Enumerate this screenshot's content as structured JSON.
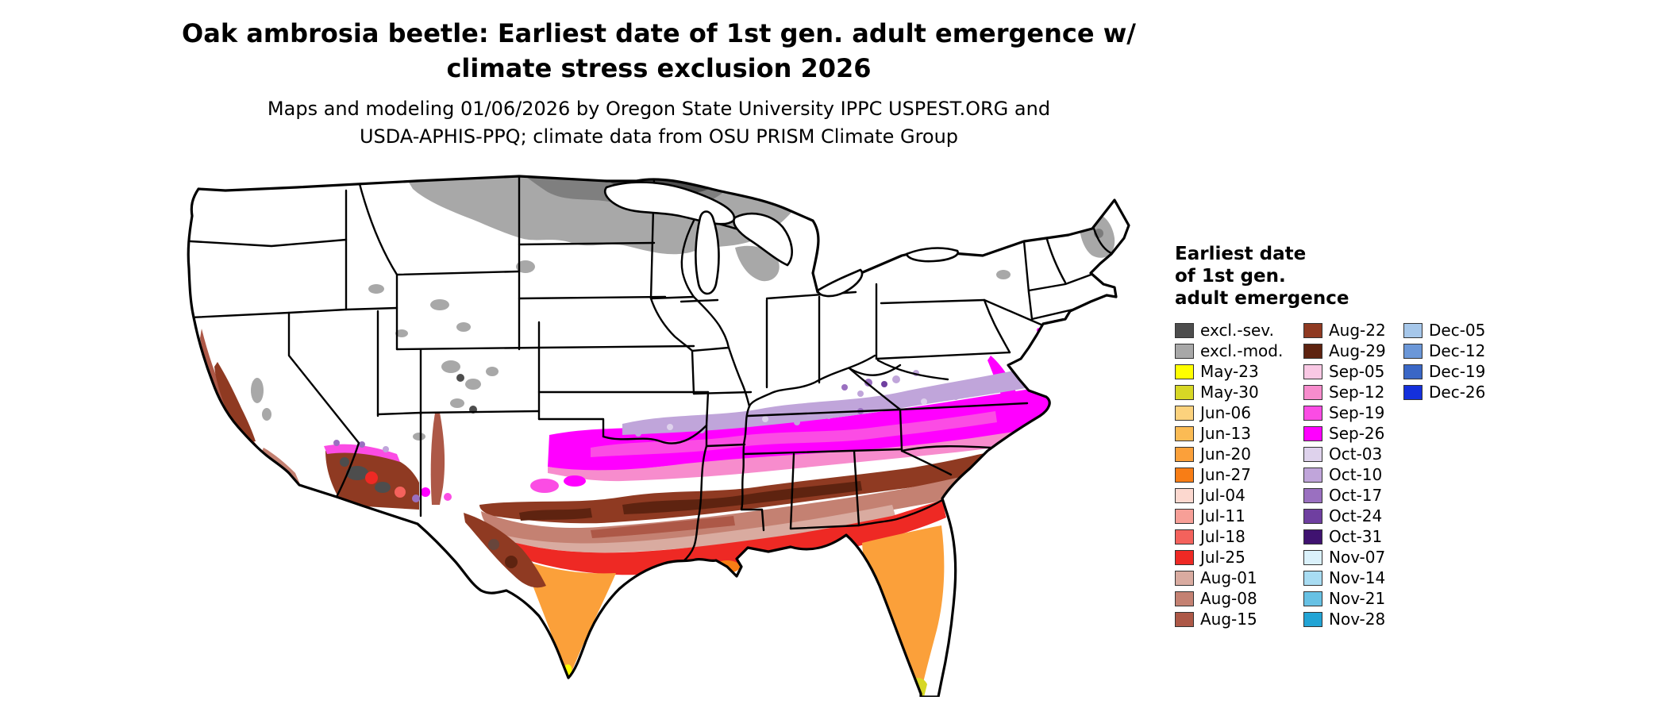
{
  "title": {
    "line1": "Oak ambrosia beetle: Earliest date of 1st gen. adult emergence w/",
    "line2": "climate stress exclusion 2026"
  },
  "subtitle": {
    "line1": "Maps and modeling 01/06/2026 by Oregon State University IPPC USPEST.ORG and",
    "line2": "USDA-APHIS-PPQ; climate data from OSU PRISM Climate Group"
  },
  "legend": {
    "title_line1": "Earliest date",
    "title_line2": "of 1st gen.",
    "title_line3": "adult emergence",
    "columns": [
      [
        "excl.-sev.",
        "excl.-mod.",
        "May-23",
        "May-30",
        "Jun-06",
        "Jun-13",
        "Jun-20",
        "Jun-27",
        "Jul-04",
        "Jul-11",
        "Jul-18",
        "Jul-25",
        "Aug-01",
        "Aug-08",
        "Aug-15"
      ],
      [
        "Aug-22",
        "Aug-29",
        "Sep-05",
        "Sep-12",
        "Sep-19",
        "Sep-26",
        "Oct-03",
        "Oct-10",
        "Oct-17",
        "Oct-24",
        "Oct-31",
        "Nov-07",
        "Nov-14",
        "Nov-21",
        "Nov-28"
      ],
      [
        "Dec-05",
        "Dec-12",
        "Dec-19",
        "Dec-26"
      ]
    ]
  },
  "palette": {
    "excl.-sev.": "#4d4d4d",
    "excl.-mod.": "#a8a8a8",
    "May-23": "#ffff00",
    "May-30": "#d7d725",
    "Jun-06": "#fcd27d",
    "Jun-13": "#fbbb54",
    "Jun-20": "#fba03a",
    "Jun-27": "#f87d15",
    "Jul-04": "#fcd8cf",
    "Jul-11": "#f79f97",
    "Jul-18": "#f4625c",
    "Jul-25": "#ee2924",
    "Aug-01": "#d9aba0",
    "Aug-08": "#c48172",
    "Aug-15": "#ad5847",
    "Aug-22": "#8f3a22",
    "Aug-29": "#5e2310",
    "Sep-05": "#f9c8e4",
    "Sep-12": "#f78ccd",
    "Sep-19": "#fb4ce4",
    "Sep-26": "#ff00ff",
    "Oct-03": "#ded2ec",
    "Oct-10": "#c0a5da",
    "Oct-17": "#9a70c0",
    "Oct-24": "#6f3fa0",
    "Oct-31": "#3f1270",
    "Nov-07": "#daf1fb",
    "Nov-14": "#a8dcf2",
    "Nov-21": "#67c1e4",
    "Nov-28": "#22a4d5",
    "Dec-05": "#a6c7ea",
    "Dec-12": "#6b97d8",
    "Dec-19": "#3a67c6",
    "Dec-26": "#1430dc"
  }
}
